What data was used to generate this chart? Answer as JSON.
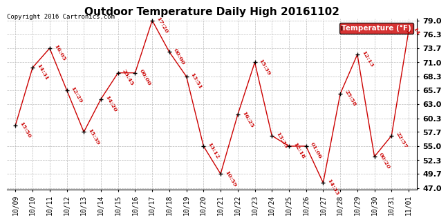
{
  "title": "Outdoor Temperature Daily High 20161102",
  "copyright": "Copyright 2016 Cartronics.com",
  "legend_label": "Temperature (°F)",
  "dates": [
    "10/09",
    "10/10",
    "10/11",
    "10/12",
    "10/13",
    "10/14",
    "10/15",
    "10/16",
    "10/17",
    "10/18",
    "10/19",
    "10/20",
    "10/21",
    "10/22",
    "10/23",
    "10/24",
    "10/25",
    "10/26",
    "10/27",
    "10/28",
    "10/29",
    "10/30",
    "10/31",
    "11/01"
  ],
  "temps": [
    59.0,
    70.0,
    73.7,
    65.7,
    57.7,
    64.0,
    69.0,
    69.0,
    79.0,
    73.0,
    68.3,
    55.0,
    49.7,
    61.0,
    71.0,
    57.0,
    55.0,
    55.0,
    48.0,
    65.0,
    72.5,
    53.0,
    57.0,
    77.0
  ],
  "times": [
    "15:56",
    "14:31",
    "16:05",
    "12:29",
    "15:39",
    "14:20",
    "23:45",
    "00:00",
    "17:20",
    "00:00",
    "13:51",
    "13:12",
    "10:59",
    "16:25",
    "15:39",
    "13:35",
    "12:18",
    "01:06",
    "14:33",
    "25:58",
    "12:13",
    "00:20",
    "22:57",
    "14"
  ],
  "ylim_low": 47.0,
  "ylim_high": 79.0,
  "ytick_vals": [
    47.0,
    49.7,
    52.3,
    55.0,
    57.7,
    60.3,
    63.0,
    65.7,
    68.3,
    71.0,
    73.7,
    76.3,
    79.0
  ],
  "line_color": "#cc0000",
  "marker_color": "#000000",
  "bg_color": "#ffffff",
  "grid_color": "#bbbbbb",
  "title_fontsize": 11,
  "tick_fontsize": 7,
  "annot_fontsize": 6,
  "legend_bg": "#cc0000",
  "legend_fg": "#ffffff"
}
